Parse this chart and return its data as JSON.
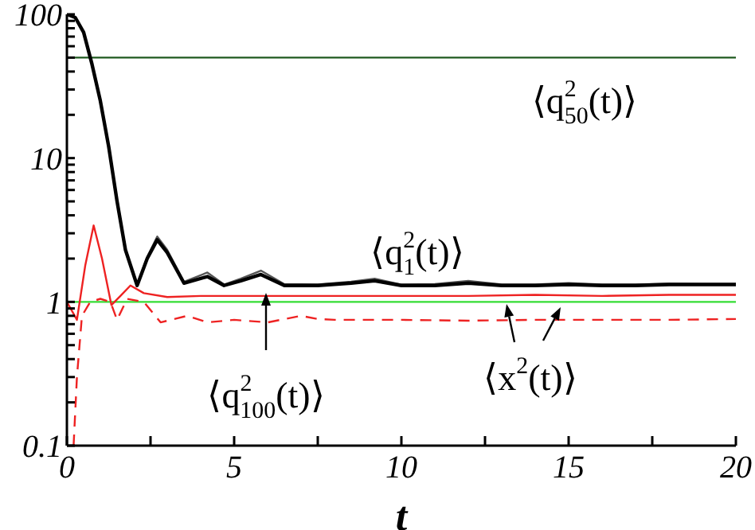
{
  "chart_data": {
    "type": "line",
    "xlabel": "t",
    "log": "y",
    "xlim": [
      0,
      20
    ],
    "ylim": [
      0.1,
      100
    ],
    "xticks": [
      0,
      {
        "value": 2.5,
        "label": null
      },
      5,
      {
        "value": 7.5,
        "label": null
      },
      10,
      {
        "value": 12.5,
        "label": null
      },
      15,
      {
        "value": 17.5,
        "label": null
      },
      20
    ],
    "yticks": [
      {
        "value": 0.1,
        "label": "0.1"
      },
      {
        "value": 0.2,
        "label": null
      },
      {
        "value": 0.3,
        "label": null
      },
      {
        "value": 0.4,
        "label": null
      },
      {
        "value": 0.5,
        "label": null
      },
      {
        "value": 0.6,
        "label": null
      },
      {
        "value": 0.7,
        "label": null
      },
      {
        "value": 0.8,
        "label": null
      },
      {
        "value": 0.9,
        "label": null
      },
      1,
      {
        "value": 2,
        "label": null
      },
      {
        "value": 3,
        "label": null
      },
      {
        "value": 4,
        "label": null
      },
      {
        "value": 5,
        "label": null
      },
      {
        "value": 6,
        "label": null
      },
      {
        "value": 7,
        "label": null
      },
      {
        "value": 8,
        "label": null
      },
      {
        "value": 9,
        "label": null
      },
      10,
      {
        "value": 20,
        "label": null
      },
      {
        "value": 30,
        "label": null
      },
      {
        "value": 40,
        "label": null
      },
      {
        "value": 50,
        "label": null
      },
      {
        "value": 60,
        "label": null
      },
      {
        "value": 70,
        "label": null
      },
      {
        "value": 80,
        "label": null
      },
      {
        "value": 90,
        "label": null
      },
      100
    ],
    "marker": "none",
    "series": [
      {
        "color": "#1f5a1f",
        "x": [
          0,
          5,
          10,
          15,
          20
        ],
        "values": [
          50,
          50,
          50,
          50,
          50
        ]
      },
      {
        "color": "#555555",
        "x": [
          0,
          0.25,
          0.5,
          0.75,
          1,
          1.25,
          1.5,
          1.75,
          2.1,
          2.4,
          2.7,
          3.0,
          3.5,
          4.2,
          4.7,
          5.2,
          5.8,
          6.5,
          7.5,
          8.5,
          9.2,
          10,
          11,
          12,
          13,
          14,
          15,
          16,
          17,
          18,
          19,
          20
        ],
        "values": [
          100,
          95,
          75,
          45,
          25,
          12,
          5,
          2.3,
          1.3,
          2.05,
          2.85,
          2.3,
          1.38,
          1.6,
          1.32,
          1.45,
          1.65,
          1.33,
          1.32,
          1.38,
          1.45,
          1.32,
          1.33,
          1.4,
          1.32,
          1.32,
          1.35,
          1.32,
          1.32,
          1.34,
          1.33,
          1.33
        ]
      },
      {
        "color": "#000000",
        "x": [
          0,
          0.25,
          0.5,
          0.75,
          1,
          1.25,
          1.5,
          1.75,
          2.1,
          2.4,
          2.7,
          3.0,
          3.5,
          4.2,
          4.7,
          5.2,
          5.8,
          6.5,
          7.5,
          8.5,
          9.2,
          10,
          11,
          12,
          13,
          14,
          15,
          16,
          17,
          18,
          19,
          20
        ],
        "values": [
          100,
          95,
          75,
          45,
          25,
          12,
          5,
          2.3,
          1.3,
          2.0,
          2.7,
          2.2,
          1.35,
          1.5,
          1.3,
          1.4,
          1.55,
          1.3,
          1.3,
          1.35,
          1.4,
          1.3,
          1.3,
          1.35,
          1.3,
          1.3,
          1.32,
          1.3,
          1.3,
          1.32,
          1.32,
          1.32
        ]
      },
      {
        "color": "#33dd33",
        "x": [
          0,
          5,
          10,
          15,
          20
        ],
        "values": [
          1,
          1,
          1,
          1,
          1
        ]
      },
      {
        "color": "#ee2222",
        "x": [
          0,
          0.3,
          0.55,
          0.8,
          1.05,
          1.33,
          1.6,
          1.9,
          2.3,
          3,
          4,
          6,
          8,
          10,
          12,
          14,
          16,
          18,
          20
        ],
        "values": [
          1,
          0.75,
          1.8,
          3.4,
          2,
          0.95,
          1.1,
          1.3,
          1.15,
          1.08,
          1.1,
          1.1,
          1.1,
          1.1,
          1.1,
          1.12,
          1.1,
          1.12,
          1.12
        ]
      },
      {
        "color": "#ee2222",
        "line_style": "dashed",
        "x": [
          0.2,
          0.3,
          0.45,
          0.7,
          1.0,
          1.3,
          1.5,
          1.8,
          2.3,
          2.8,
          3.6,
          4.2,
          5,
          6,
          7,
          7.5,
          8,
          10,
          12,
          14,
          16,
          18,
          20
        ],
        "values": [
          0.1,
          0.3,
          0.8,
          1.0,
          1.05,
          1.0,
          0.75,
          1.05,
          1.0,
          0.72,
          0.8,
          0.72,
          0.75,
          0.72,
          0.8,
          0.76,
          0.75,
          0.75,
          0.74,
          0.75,
          0.75,
          0.75,
          0.76
        ]
      }
    ],
    "annotations": [
      "⟨q$^{2}$$_{50}$(t)⟩",
      "⟨q$^{2}$$_{1}$(t)⟩",
      "⟨q$^{2}$$_{100}$(t)⟩",
      "⟨x$^{2}$(t)⟩"
    ]
  }
}
